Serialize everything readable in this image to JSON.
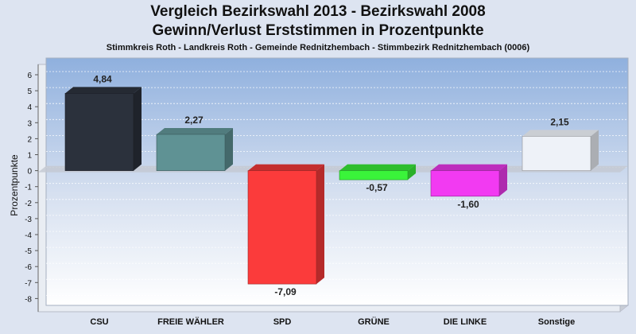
{
  "title_line1": "Vergleich Bezirkswahl 2013 - Bezirkswahl 2008",
  "title_line2": "Gewinn/Verlust Erststimmen in Prozentpunkte",
  "subtitle": "Stimmkreis Roth - Landkreis Roth - Gemeinde Rednitzhembach - Stimmbezirk Rednitzhembach (0006)",
  "chart_data": {
    "type": "bar",
    "categories": [
      "CSU",
      "FREIE WÄHLER",
      "SPD",
      "GRÜNE",
      "DIE LINKE",
      "Sonstige"
    ],
    "values": [
      4.84,
      2.27,
      -7.09,
      -0.57,
      -1.6,
      2.15
    ],
    "value_labels": [
      "4,84",
      "2,27",
      "-7,09",
      "-0,57",
      "-1,60",
      "2,15"
    ],
    "colors": [
      "#2b313c",
      "#5f9294",
      "#fb3b3b",
      "#3af43a",
      "#f23af2",
      "#eef2f8"
    ],
    "ylabel": "Prozentpunkte",
    "xlabel": "",
    "ylim": [
      -8,
      6
    ],
    "yticks": [
      6,
      5,
      4,
      3,
      2,
      1,
      0,
      -1,
      -2,
      -3,
      -4,
      -5,
      -6,
      -7,
      -8
    ],
    "grid": true
  }
}
